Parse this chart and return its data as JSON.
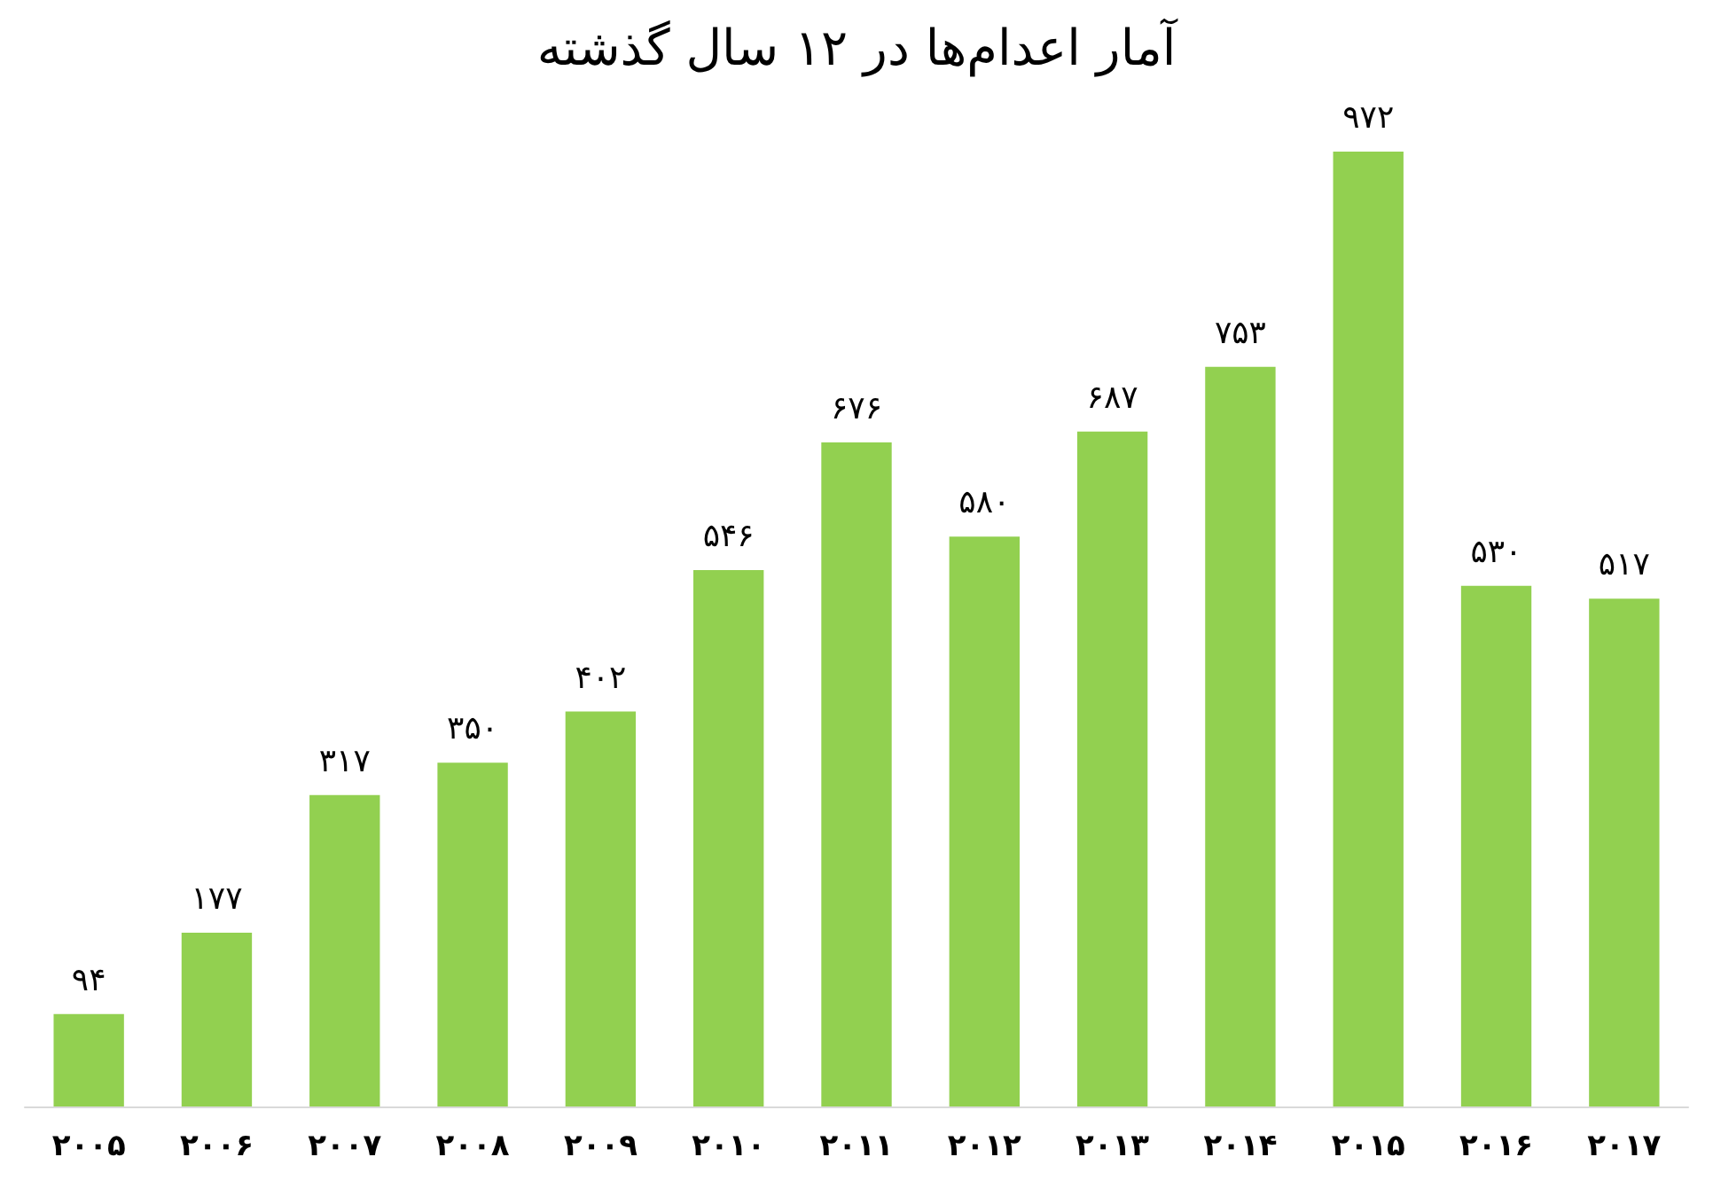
{
  "chart_data": {
    "type": "bar",
    "title": "آمار اعدام‌ها در ۱۲ سال گذشته",
    "categories": [
      "۲۰۰۵",
      "۲۰۰۶",
      "۲۰۰۷",
      "۲۰۰۸",
      "۲۰۰۹",
      "۲۰۱۰",
      "۲۰۱۱",
      "۲۰۱۲",
      "۲۰۱۳",
      "۲۰۱۴",
      "۲۰۱۵",
      "۲۰۱۶",
      "۲۰۱۷"
    ],
    "values": [
      94,
      177,
      317,
      350,
      402,
      546,
      676,
      580,
      687,
      753,
      972,
      530,
      517
    ],
    "value_labels": [
      "۹۴",
      "۱۷۷",
      "۳۱۷",
      "۳۵۰",
      "۴۰۲",
      "۵۴۶",
      "۶۷۶",
      "۵۸۰",
      "۶۸۷",
      "۷۵۳",
      "۹۷۲",
      "۵۳۰",
      "۵۱۷"
    ],
    "color": "#92d050"
  }
}
